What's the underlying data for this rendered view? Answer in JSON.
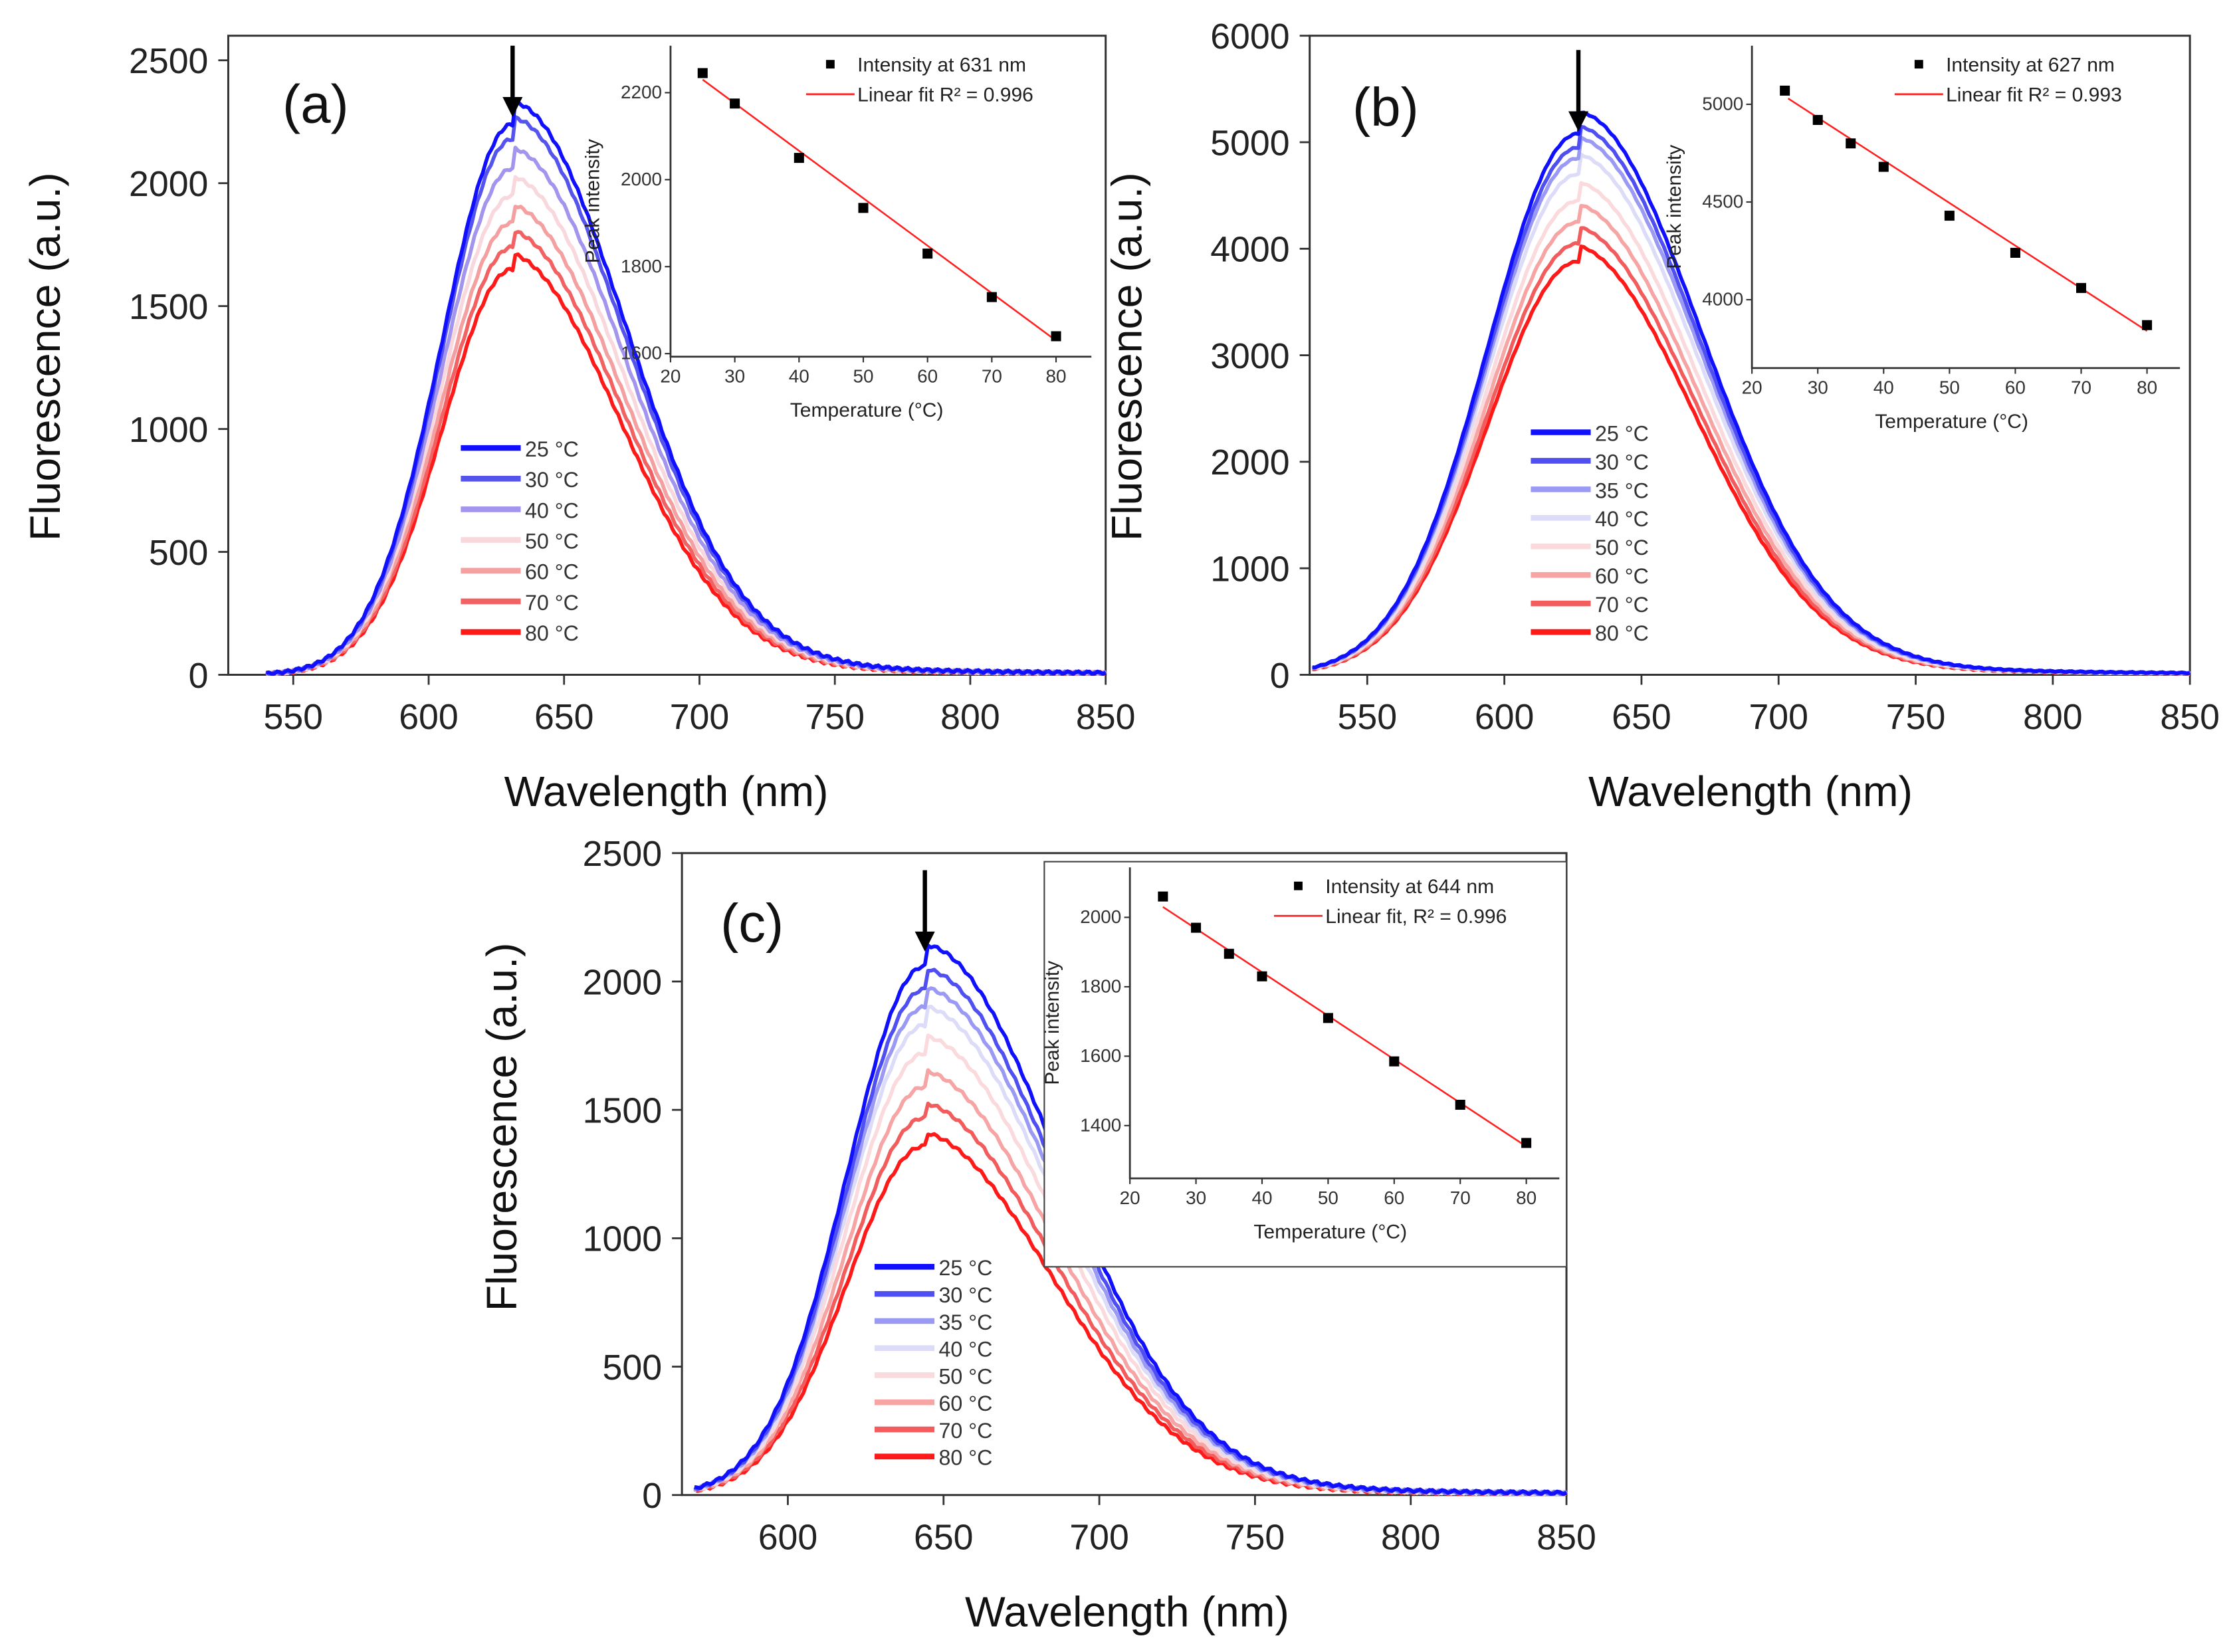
{
  "chart_data": [
    {
      "type": "line",
      "panel_label": "(a)",
      "xlabel": "Wavelength (nm)",
      "ylabel": "Fluorescence (a.u.)",
      "xlim": [
        526,
        850
      ],
      "ylim": [
        0,
        2600
      ],
      "xticks": [
        550,
        600,
        650,
        700,
        750,
        800,
        850
      ],
      "yticks": [
        0,
        500,
        1000,
        1500,
        2000,
        2500
      ],
      "arrow_at_nm": 631,
      "peak_nm": 631,
      "width_left_nm": 26,
      "width_right_nm": 42,
      "x_start_nm": 540,
      "series": [
        {
          "name": "25 °C",
          "peak": 2240,
          "color": "#1010ff"
        },
        {
          "name": "30 °C",
          "peak": 2180,
          "color": "#5555ee"
        },
        {
          "name": "40 °C",
          "peak": 2060,
          "color": "#a394ee"
        },
        {
          "name": "50 °C",
          "peak": 1950,
          "color": "#f8d8dc"
        },
        {
          "name": "60 °C",
          "peak": 1840,
          "color": "#f4a0a0"
        },
        {
          "name": "70 °C",
          "peak": 1740,
          "color": "#f26262"
        },
        {
          "name": "80 °C",
          "peak": 1650,
          "color": "#ff1a1a"
        }
      ],
      "inset": {
        "type": "scatter",
        "xlabel": "Temperature (°C)",
        "ylabel": "Peak intensity",
        "xlim": [
          20,
          85.5
        ],
        "ylim": [
          1593,
          2308
        ],
        "xticks": [
          20,
          30,
          40,
          50,
          60,
          70,
          80
        ],
        "yticks": [
          1600,
          1800,
          2000,
          2200
        ],
        "marker_label": "Intensity at 631 nm",
        "fit_label": "Linear fit R² = 0.996",
        "x": [
          25,
          30,
          40,
          50,
          60,
          70,
          80
        ],
        "y": [
          2245,
          2175,
          2050,
          1935,
          1830,
          1730,
          1640
        ],
        "fit": [
          [
            25,
            2230
          ],
          [
            80,
            1630
          ]
        ],
        "fit_color": "#ff2020"
      }
    },
    {
      "type": "line",
      "panel_label": "(b)",
      "xlabel": "Wavelength (nm)",
      "ylabel": "Fluorescence (a.u.)",
      "xlim": [
        529,
        850
      ],
      "ylim": [
        0,
        6000
      ],
      "xticks": [
        550,
        600,
        650,
        700,
        750,
        800,
        850
      ],
      "yticks": [
        0,
        1000,
        2000,
        3000,
        4000,
        5000,
        6000
      ],
      "arrow_at_nm": 627,
      "peak_nm": 627,
      "width_left_nm": 33,
      "width_right_nm": 45,
      "x_start_nm": 530,
      "series": [
        {
          "name": "25 °C",
          "peak": 5080,
          "color": "#1010ff"
        },
        {
          "name": "30 °C",
          "peak": 4950,
          "color": "#4f4ff2"
        },
        {
          "name": "35 °C",
          "peak": 4850,
          "color": "#9a9af5"
        },
        {
          "name": "40 °C",
          "peak": 4700,
          "color": "#dcdcf8"
        },
        {
          "name": "50 °C",
          "peak": 4450,
          "color": "#fadadd"
        },
        {
          "name": "60 °C",
          "peak": 4250,
          "color": "#f6a4a4"
        },
        {
          "name": "70 °C",
          "peak": 4050,
          "color": "#f25c5c"
        },
        {
          "name": "80 °C",
          "peak": 3880,
          "color": "#ff1a1a"
        }
      ],
      "inset": {
        "type": "scatter",
        "xlabel": "Temperature (°C)",
        "ylabel": "Peak intensity",
        "xlim": [
          20,
          85
        ],
        "ylim": [
          3650,
          5300
        ],
        "xticks": [
          20,
          30,
          40,
          50,
          60,
          70,
          80
        ],
        "yticks": [
          4000,
          4500,
          5000
        ],
        "marker_label": "Intensity at 627 nm",
        "fit_label": "Linear fit R² = 0.993",
        "x": [
          25,
          30,
          35,
          40,
          50,
          60,
          70,
          80
        ],
        "y": [
          5070,
          4920,
          4800,
          4680,
          4430,
          4240,
          4060,
          3870
        ],
        "fit": [
          [
            25.5,
            5030
          ],
          [
            80,
            3840
          ]
        ],
        "fit_color": "#ff2020"
      }
    },
    {
      "type": "line",
      "panel_label": "(c)",
      "xlabel": "Wavelength (nm)",
      "ylabel": "Fluorescence (a.u.)",
      "xlim": [
        566,
        850
      ],
      "ylim": [
        0,
        2500
      ],
      "xticks": [
        600,
        650,
        700,
        750,
        800,
        850
      ],
      "yticks": [
        0,
        500,
        1000,
        1500,
        2000,
        2500
      ],
      "arrow_at_nm": 644,
      "peak_nm": 644,
      "width_left_nm": 25,
      "width_right_nm": 43,
      "x_start_nm": 570,
      "series": [
        {
          "name": "25 °C",
          "peak": 2060,
          "color": "#1010ff"
        },
        {
          "name": "30 °C",
          "peak": 1970,
          "color": "#4f4ff2"
        },
        {
          "name": "35 °C",
          "peak": 1900,
          "color": "#9a9af5"
        },
        {
          "name": "40 °C",
          "peak": 1830,
          "color": "#dcdcf8"
        },
        {
          "name": "50 °C",
          "peak": 1720,
          "color": "#fadadd"
        },
        {
          "name": "60 °C",
          "peak": 1590,
          "color": "#f6a4a4"
        },
        {
          "name": "70 °C",
          "peak": 1470,
          "color": "#f25c5c"
        },
        {
          "name": "80 °C",
          "peak": 1360,
          "color": "#ff1a1a"
        }
      ],
      "inset": {
        "type": "scatter",
        "xlabel": "Temperature (°C)",
        "ylabel": "Peak intensity",
        "xlim": [
          20,
          85
        ],
        "ylim": [
          1248,
          2144
        ],
        "xticks": [
          20,
          30,
          40,
          50,
          60,
          70,
          80
        ],
        "yticks": [
          1400,
          1600,
          1800,
          2000
        ],
        "marker_label": "Intensity at 644 nm",
        "fit_label": "Linear fit, R² = 0.996",
        "x": [
          25,
          30,
          35,
          40,
          50,
          60,
          70,
          80
        ],
        "y": [
          2060,
          1970,
          1895,
          1830,
          1710,
          1585,
          1460,
          1350
        ],
        "fit": [
          [
            25,
            2030
          ],
          [
            80,
            1340
          ]
        ],
        "fit_color": "#ff2020"
      }
    }
  ]
}
